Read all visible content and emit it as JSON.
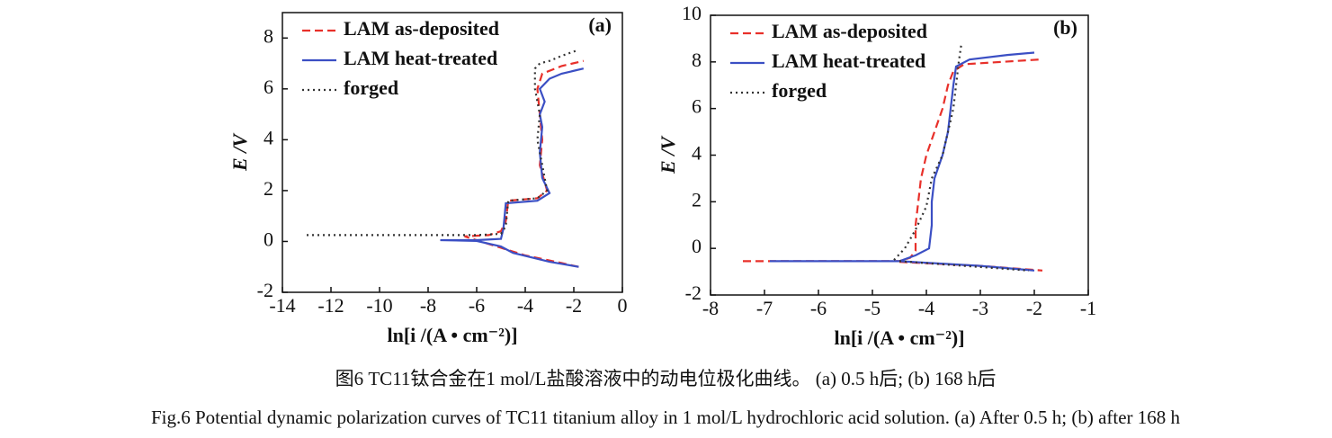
{
  "chart_data": [
    {
      "type": "line",
      "annotation": "(a)",
      "x_label": "ln[i /(A • cm⁻²)]",
      "y_label": "E /V",
      "xlim": [
        -14,
        0
      ],
      "xticks": [
        -14,
        -12,
        -10,
        -8,
        -6,
        -4,
        -2,
        0
      ],
      "ylim": [
        -2,
        9
      ],
      "yticks": [
        -2,
        0,
        2,
        4,
        6,
        8
      ],
      "legend": "upper-left",
      "series": [
        {
          "name": "LAM as-deposited",
          "color": "#e8302a",
          "dash": "dashed",
          "x": [
            -1.8,
            -2.5,
            -4.0,
            -5.0,
            -5.5,
            -6.5,
            -5.5,
            -5.0,
            -4.8,
            -4.7,
            -3.5,
            -3.1,
            -3.4,
            -3.3,
            -3.4,
            -3.5,
            -3.3,
            -2.5,
            -1.6
          ],
          "values": [
            -1.0,
            -0.85,
            -0.55,
            -0.25,
            -0.1,
            0.2,
            0.25,
            0.4,
            0.8,
            1.6,
            1.7,
            2.0,
            3.0,
            4.0,
            5.0,
            6.0,
            6.6,
            6.9,
            7.1
          ]
        },
        {
          "name": "LAM heat-treated",
          "color": "#3b4fc4",
          "dash": "solid",
          "x": [
            -1.8,
            -3.0,
            -4.5,
            -5.0,
            -6.0,
            -7.5,
            -6.0,
            -5.0,
            -4.9,
            -4.8,
            -3.5,
            -3.0,
            -3.3,
            -3.4,
            -3.3,
            -3.4,
            -3.2,
            -3.4,
            -3.0,
            -2.5,
            -1.6
          ],
          "values": [
            -1.0,
            -0.8,
            -0.45,
            -0.2,
            0.02,
            0.05,
            0.05,
            0.1,
            0.5,
            1.5,
            1.6,
            1.9,
            2.5,
            3.5,
            4.5,
            5.0,
            5.5,
            6.0,
            6.4,
            6.6,
            6.8
          ]
        },
        {
          "name": "forged",
          "color": "#333333",
          "dash": "dotted",
          "x": [
            -13,
            -8,
            -6,
            -5,
            -4.8,
            -4.7,
            -3.5,
            -3.1,
            -3.3,
            -3.5,
            -3.4,
            -3.6,
            -3.6,
            -3.4,
            -3.0,
            -2.5,
            -1.9
          ],
          "values": [
            0.25,
            0.25,
            0.25,
            0.3,
            0.6,
            1.6,
            1.7,
            2.0,
            3.0,
            4.0,
            5.0,
            6.0,
            6.8,
            7.0,
            7.1,
            7.3,
            7.5
          ]
        }
      ]
    },
    {
      "type": "line",
      "annotation": "(b)",
      "x_label": "ln[i /(A • cm⁻²)]",
      "y_label": "E /V",
      "xlim": [
        -8,
        -1
      ],
      "xticks": [
        -8,
        -7,
        -6,
        -5,
        -4,
        -3,
        -2,
        -1
      ],
      "ylim": [
        -2,
        10
      ],
      "yticks": [
        -2,
        0,
        2,
        4,
        6,
        8,
        10
      ],
      "legend": "upper-left",
      "series": [
        {
          "name": "LAM as-deposited",
          "color": "#e8302a",
          "dash": "dashed",
          "x": [
            -7.4,
            -4.5,
            -4.3,
            -4.2,
            -4.2,
            -4.15,
            -4.1,
            -4.0,
            -3.85,
            -3.7,
            -3.6,
            -3.5,
            -3.3,
            -1.9,
            null,
            -4.5,
            -3.0,
            -1.85
          ],
          "values": [
            -0.55,
            -0.55,
            -0.4,
            -0.1,
            1.0,
            2.0,
            3.0,
            4.0,
            5.0,
            6.0,
            7.0,
            7.6,
            7.9,
            8.1,
            null,
            -0.58,
            -0.75,
            -0.95
          ]
        },
        {
          "name": "LAM heat-treated",
          "color": "#3b4fc4",
          "dash": "solid",
          "x": [
            -6.9,
            -4.5,
            -4.2,
            -3.95,
            -3.9,
            -3.9,
            -3.85,
            -3.7,
            -3.6,
            -3.55,
            -3.5,
            -3.45,
            -3.2,
            -2.5,
            -2.0,
            null,
            -4.5,
            -3.0,
            -2.0
          ],
          "values": [
            -0.55,
            -0.55,
            -0.3,
            0.0,
            1.0,
            2.0,
            3.0,
            4.0,
            5.0,
            6.0,
            7.0,
            7.8,
            8.1,
            8.3,
            8.4,
            null,
            -0.55,
            -0.75,
            -0.95
          ]
        },
        {
          "name": "forged",
          "color": "#333333",
          "dash": "dotted",
          "x": [
            -4.6,
            -4.4,
            -4.2,
            -4.0,
            -3.9,
            -3.7,
            -3.6,
            -3.5,
            -3.45,
            -3.4,
            -3.35,
            null,
            -4.5,
            -3.0,
            -2.1
          ],
          "values": [
            -0.5,
            0.0,
            0.8,
            1.8,
            3.0,
            4.0,
            5.0,
            6.0,
            7.0,
            8.0,
            8.8,
            null,
            -0.55,
            -0.8,
            -0.95
          ]
        }
      ]
    }
  ],
  "captions": {
    "chinese": "图6  TC11钛合金在1 mol/L盐酸溶液中的动电位极化曲线。 (a) 0.5 h后; (b) 168 h后",
    "english": "Fig.6  Potential dynamic polarization curves of TC11 titanium alloy in 1 mol/L hydrochloric acid solution. (a) After 0.5 h; (b) after 168 h"
  }
}
